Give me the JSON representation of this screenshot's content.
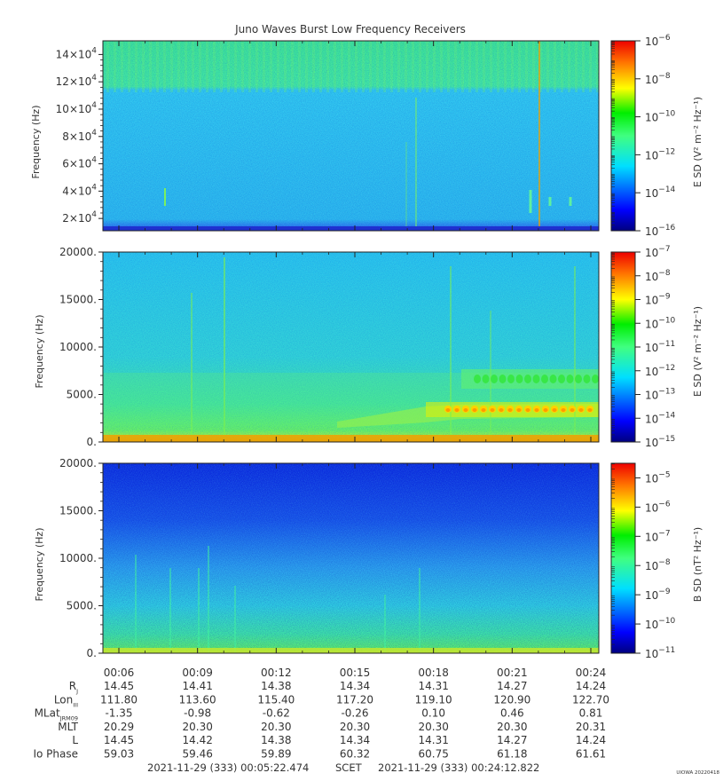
{
  "chart_data": {
    "type": "heatmap",
    "title": "Juno Waves Burst Low Frequency Receivers",
    "time_axis": {
      "ticks": [
        "00:06",
        "00:09",
        "00:12",
        "00:15",
        "00:18",
        "00:21",
        "00:24"
      ]
    },
    "panels": [
      {
        "id": "hfr",
        "ylabel": "Frequency (Hz)",
        "ylim": [
          11000,
          150000
        ],
        "yticks": [
          {
            "value": 20000,
            "mant": "2×10",
            "exp": "4"
          },
          {
            "value": 40000,
            "mant": "4×10",
            "exp": "4"
          },
          {
            "value": 60000,
            "mant": "6×10",
            "exp": "4"
          },
          {
            "value": 80000,
            "mant": "8×10",
            "exp": "4"
          },
          {
            "value": 100000,
            "mant": "10×10",
            "exp": "4"
          },
          {
            "value": 120000,
            "mant": "12×10",
            "exp": "4"
          },
          {
            "value": 140000,
            "mant": "14×10",
            "exp": "4"
          }
        ],
        "colorbar": {
          "label": "E SD (V² m⁻² Hz⁻¹)",
          "log_range": [
            -16,
            -6
          ],
          "ticks": [
            -16,
            -14,
            -12,
            -10,
            -8,
            -6
          ]
        }
      },
      {
        "id": "lfr-e",
        "ylabel": "Frequency (Hz)",
        "ylim": [
          0,
          20000
        ],
        "yticks": [
          {
            "value": 0,
            "label": "0."
          },
          {
            "value": 5000,
            "label": "5000."
          },
          {
            "value": 10000,
            "label": "10000."
          },
          {
            "value": 15000,
            "label": "15000."
          },
          {
            "value": 20000,
            "label": "20000."
          }
        ],
        "colorbar": {
          "label": "E SD (V² m⁻² Hz⁻¹)",
          "log_range": [
            -15,
            -7
          ],
          "ticks": [
            -15,
            -14,
            -13,
            -12,
            -11,
            -10,
            -9,
            -8,
            -7
          ]
        }
      },
      {
        "id": "lfr-b",
        "ylabel": "Frequency (Hz)",
        "ylim": [
          0,
          20000
        ],
        "yticks": [
          {
            "value": 0,
            "label": "0."
          },
          {
            "value": 5000,
            "label": "5000."
          },
          {
            "value": 10000,
            "label": "10000."
          },
          {
            "value": 15000,
            "label": "15000."
          },
          {
            "value": 20000,
            "label": "20000."
          }
        ],
        "colorbar": {
          "label": "B SD (nT² Hz⁻¹)",
          "log_range": [
            -11,
            -4.5
          ],
          "ticks": [
            -11,
            -10,
            -9,
            -8,
            -7,
            -6,
            -5
          ]
        }
      }
    ],
    "ephemeris": {
      "rows": [
        {
          "label": "R",
          "sub": "J",
          "values": [
            "14.45",
            "14.41",
            "14.38",
            "14.34",
            "14.31",
            "14.27",
            "14.24"
          ]
        },
        {
          "label": "Lon",
          "sub": "III",
          "values": [
            "111.80",
            "113.60",
            "115.40",
            "117.20",
            "119.10",
            "120.90",
            "122.70"
          ]
        },
        {
          "label": "MLat",
          "sub": "JRM09",
          "values": [
            "-1.35",
            "-0.98",
            "-0.62",
            "-0.26",
            "0.10",
            "0.46",
            "0.81"
          ]
        },
        {
          "label": "MLT",
          "sub": "",
          "values": [
            "20.29",
            "20.30",
            "20.30",
            "20.30",
            "20.30",
            "20.30",
            "20.31"
          ]
        },
        {
          "label": "L",
          "sub": "",
          "values": [
            "14.45",
            "14.42",
            "14.38",
            "14.34",
            "14.31",
            "14.27",
            "14.24"
          ]
        },
        {
          "label": "Io Phase",
          "sub": "",
          "values": [
            "59.03",
            "59.46",
            "59.89",
            "60.32",
            "60.75",
            "61.18",
            "61.61"
          ]
        }
      ]
    },
    "footer": {
      "start": "2021-11-29 (333) 00:05:22.474",
      "scet": "SCET",
      "end": "2021-11-29 (333) 00:24:12.822"
    },
    "credit": "UIOWA 20220418"
  }
}
